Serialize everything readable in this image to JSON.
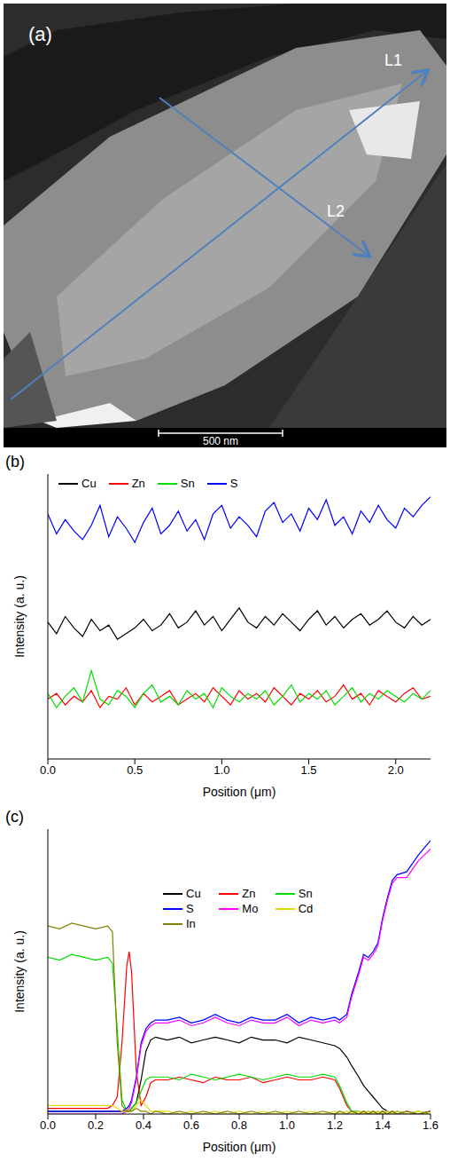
{
  "image": {
    "panel": "(a)",
    "arrows": [
      "L1",
      "L2"
    ],
    "scale_bar": "500 nm"
  },
  "chart_data": [
    {
      "type": "line",
      "panel": "(b)",
      "x_label": "Position (μm)",
      "y_label": "Intensity (a. u.)",
      "x": [
        0,
        0.05,
        0.1,
        0.15,
        0.2,
        0.25,
        0.3,
        0.35,
        0.4,
        0.45,
        0.5,
        0.55,
        0.6,
        0.65,
        0.7,
        0.75,
        0.8,
        0.85,
        0.9,
        0.95,
        1.0,
        1.05,
        1.1,
        1.15,
        1.2,
        1.25,
        1.3,
        1.35,
        1.4,
        1.45,
        1.5,
        1.55,
        1.6,
        1.65,
        1.7,
        1.75,
        1.8,
        1.85,
        1.9,
        1.95,
        2.0,
        2.05,
        2.1,
        2.15,
        2.2
      ],
      "series": [
        {
          "name": "Cu",
          "color": "#000000",
          "values": [
            4.8,
            4.4,
            5.0,
            4.6,
            4.3,
            4.9,
            4.5,
            4.7,
            4.2,
            4.4,
            4.6,
            4.9,
            4.5,
            4.7,
            5.1,
            4.6,
            4.8,
            5.2,
            4.7,
            5.0,
            4.5,
            4.9,
            5.3,
            4.8,
            4.6,
            5.0,
            4.7,
            5.1,
            4.8,
            4.5,
            4.9,
            5.2,
            4.7,
            5.0,
            4.6,
            4.9,
            5.1,
            4.7,
            4.9,
            5.2,
            4.8,
            4.6,
            5.0,
            4.7,
            4.9
          ]
        },
        {
          "name": "Zn",
          "color": "#ff0000",
          "values": [
            2.1,
            2.3,
            1.9,
            2.2,
            2.0,
            2.4,
            1.8,
            2.2,
            2.1,
            2.5,
            1.9,
            2.3,
            2.0,
            2.2,
            2.4,
            1.9,
            2.1,
            2.3,
            2.0,
            2.5,
            2.2,
            1.9,
            2.4,
            2.1,
            2.3,
            2.0,
            2.5,
            2.2,
            1.9,
            2.3,
            2.1,
            2.4,
            2.0,
            2.2,
            2.6,
            2.1,
            2.3,
            1.9,
            2.4,
            2.2,
            2.0,
            2.3,
            2.5,
            2.1,
            2.2
          ]
        },
        {
          "name": "Sn",
          "color": "#00dd00",
          "values": [
            2.3,
            1.8,
            2.2,
            2.5,
            2.0,
            3.1,
            2.1,
            1.9,
            2.4,
            2.2,
            1.8,
            2.3,
            2.6,
            2.0,
            2.2,
            1.9,
            2.4,
            2.1,
            2.3,
            1.8,
            2.5,
            2.2,
            2.0,
            2.3,
            2.1,
            2.4,
            1.9,
            2.2,
            2.6,
            2.0,
            2.3,
            2.1,
            2.4,
            1.9,
            2.2,
            2.5,
            2.0,
            2.3,
            2.1,
            2.4,
            2.2,
            2.0,
            2.3,
            2.1,
            2.4
          ]
        },
        {
          "name": "S",
          "color": "#0000ff",
          "values": [
            8.6,
            7.9,
            8.4,
            8.0,
            7.7,
            8.2,
            8.9,
            7.8,
            8.5,
            8.1,
            7.6,
            8.3,
            8.8,
            7.9,
            8.2,
            8.7,
            8.0,
            8.4,
            7.7,
            8.6,
            8.9,
            8.1,
            8.5,
            8.2,
            7.8,
            8.7,
            9.0,
            8.3,
            8.6,
            8.0,
            8.8,
            8.4,
            9.1,
            8.2,
            8.5,
            7.9,
            8.7,
            8.3,
            8.9,
            8.4,
            8.1,
            8.8,
            8.5,
            8.9,
            9.2
          ]
        }
      ],
      "xlim": [
        0,
        2.2
      ],
      "xticks": [
        {
          "value": 0,
          "label": "0.0"
        },
        0.5,
        {
          "value": 1,
          "label": "1.0"
        },
        1.5,
        {
          "value": 2,
          "label": "2.0"
        }
      ],
      "ylim": [
        0,
        10
      ],
      "yticks": [
        0,
        2,
        4,
        6,
        8,
        10
      ],
      "tick_labels": "x",
      "legend": "top-left",
      "grid": false
    },
    {
      "type": "line",
      "panel": "(c)",
      "x_label": "Position (μm)",
      "y_label": "Intensity (a. u.)",
      "x": [
        0,
        0.05,
        0.1,
        0.15,
        0.2,
        0.25,
        0.27,
        0.29,
        0.31,
        0.33,
        0.34,
        0.35,
        0.37,
        0.39,
        0.41,
        0.43,
        0.45,
        0.5,
        0.55,
        0.6,
        0.65,
        0.7,
        0.75,
        0.8,
        0.85,
        0.9,
        0.95,
        1.0,
        1.05,
        1.1,
        1.15,
        1.2,
        1.22,
        1.25,
        1.27,
        1.3,
        1.32,
        1.34,
        1.36,
        1.38,
        1.4,
        1.42,
        1.44,
        1.46,
        1.5,
        1.55,
        1.6
      ],
      "series": [
        {
          "name": "Cu",
          "color": "#000000",
          "values": [
            0.1,
            0.1,
            0.1,
            0.1,
            0.1,
            0.1,
            0.1,
            0.1,
            0.1,
            0.1,
            0.1,
            0.2,
            0.4,
            1.2,
            2.2,
            2.6,
            2.7,
            2.6,
            2.7,
            2.5,
            2.6,
            2.7,
            2.6,
            2.5,
            2.7,
            2.6,
            2.6,
            2.5,
            2.7,
            2.6,
            2.5,
            2.4,
            2.3,
            2.0,
            1.7,
            1.3,
            1.0,
            0.8,
            0.6,
            0.4,
            0.2,
            0.1,
            0.0,
            0.1,
            0.0,
            0.0,
            0.1
          ]
        },
        {
          "name": "Zn",
          "color": "#ff0000",
          "values": [
            0.2,
            0.2,
            0.2,
            0.2,
            0.2,
            0.2,
            0.3,
            0.6,
            2.5,
            5.2,
            5.7,
            5.0,
            1.5,
            0.3,
            0.6,
            1.1,
            1.2,
            1.2,
            1.3,
            1.2,
            1.1,
            1.3,
            1.2,
            1.2,
            1.3,
            1.1,
            1.2,
            1.3,
            1.2,
            1.2,
            1.3,
            1.2,
            0.9,
            0.3,
            0.1,
            0.0,
            0.1,
            0.0,
            0.1,
            0.0,
            0.1,
            0.0,
            0.1,
            0.0,
            0.1,
            0.0,
            0.1
          ]
        },
        {
          "name": "Sn",
          "color": "#00dd00",
          "values": [
            5.5,
            5.4,
            5.6,
            5.5,
            5.4,
            5.5,
            5.3,
            3.0,
            0.5,
            0.1,
            0.1,
            0.2,
            0.4,
            0.8,
            1.2,
            1.3,
            1.3,
            1.3,
            1.2,
            1.4,
            1.3,
            1.2,
            1.3,
            1.4,
            1.3,
            1.2,
            1.3,
            1.4,
            1.3,
            1.3,
            1.4,
            1.3,
            1.0,
            0.4,
            0.1,
            0.1,
            0.0,
            0.1,
            0.0,
            0.1,
            0.0,
            0.1,
            0.0,
            0.1,
            0.0,
            0.1,
            0.0
          ]
        },
        {
          "name": "S",
          "color": "#0000ff",
          "values": [
            0.1,
            0.1,
            0.1,
            0.1,
            0.1,
            0.1,
            0.1,
            0.1,
            0.1,
            0.2,
            0.3,
            0.5,
            1.3,
            2.5,
            3.0,
            3.2,
            3.3,
            3.3,
            3.4,
            3.2,
            3.3,
            3.5,
            3.3,
            3.2,
            3.4,
            3.3,
            3.3,
            3.5,
            3.2,
            3.4,
            3.3,
            3.4,
            3.3,
            3.5,
            4.2,
            5.0,
            5.6,
            5.5,
            5.7,
            6.0,
            6.9,
            7.6,
            8.2,
            8.4,
            8.5,
            9.1,
            9.6
          ]
        },
        {
          "name": "Mo",
          "color": "#ff00ff",
          "values": [
            0.0,
            0.0,
            0.0,
            0.0,
            0.0,
            0.0,
            0.0,
            0.0,
            0.0,
            0.1,
            0.2,
            0.4,
            1.2,
            2.4,
            2.9,
            3.1,
            3.2,
            3.2,
            3.3,
            3.1,
            3.2,
            3.4,
            3.2,
            3.1,
            3.3,
            3.2,
            3.2,
            3.4,
            3.1,
            3.3,
            3.2,
            3.3,
            3.2,
            3.4,
            4.1,
            4.9,
            5.5,
            5.4,
            5.6,
            5.9,
            6.8,
            7.5,
            8.1,
            8.3,
            8.3,
            8.9,
            9.3
          ]
        },
        {
          "name": "Cd",
          "color": "#e6d800",
          "values": [
            0.3,
            0.3,
            0.3,
            0.3,
            0.3,
            0.3,
            0.3,
            0.2,
            0.1,
            0.1,
            0.1,
            0.1,
            0.3,
            0.5,
            0.3,
            0.1,
            0.1,
            0.1,
            0.0,
            0.1,
            0.0,
            0.1,
            0.0,
            0.1,
            0.0,
            0.1,
            0.0,
            0.1,
            0.0,
            0.1,
            0.0,
            0.1,
            0.0,
            0.1,
            0.0,
            0.1,
            0.0,
            0.1,
            0.0,
            0.1,
            0.0,
            0.1,
            0.0,
            0.1,
            0.0,
            0.1,
            0.0
          ]
        },
        {
          "name": "In",
          "color": "#808000",
          "values": [
            6.6,
            6.5,
            6.7,
            6.6,
            6.5,
            6.6,
            6.4,
            2.5,
            0.3,
            0.1,
            0.1,
            0.1,
            0.2,
            0.1,
            0.1,
            0.0,
            0.1,
            0.0,
            0.1,
            0.0,
            0.1,
            0.0,
            0.1,
            0.0,
            0.1,
            0.0,
            0.1,
            0.0,
            0.1,
            0.0,
            0.1,
            0.0,
            0.1,
            0.0,
            0.1,
            0.0,
            0.1,
            0.0,
            0.1,
            0.0,
            0.1,
            0.0,
            0.1,
            0.0,
            0.1,
            0.0,
            0.1
          ]
        }
      ],
      "xlim": [
        0,
        1.6
      ],
      "xticks": [
        {
          "value": 0,
          "label": "0.0"
        },
        0.2,
        0.4,
        0.6,
        0.8,
        {
          "value": 1,
          "label": "1.0"
        },
        1.2,
        1.4,
        1.6
      ],
      "ylim": [
        0,
        10
      ],
      "yticks": [
        0,
        2,
        4,
        6,
        8,
        10
      ],
      "tick_labels": "x",
      "legend": "top",
      "grid": false
    }
  ]
}
